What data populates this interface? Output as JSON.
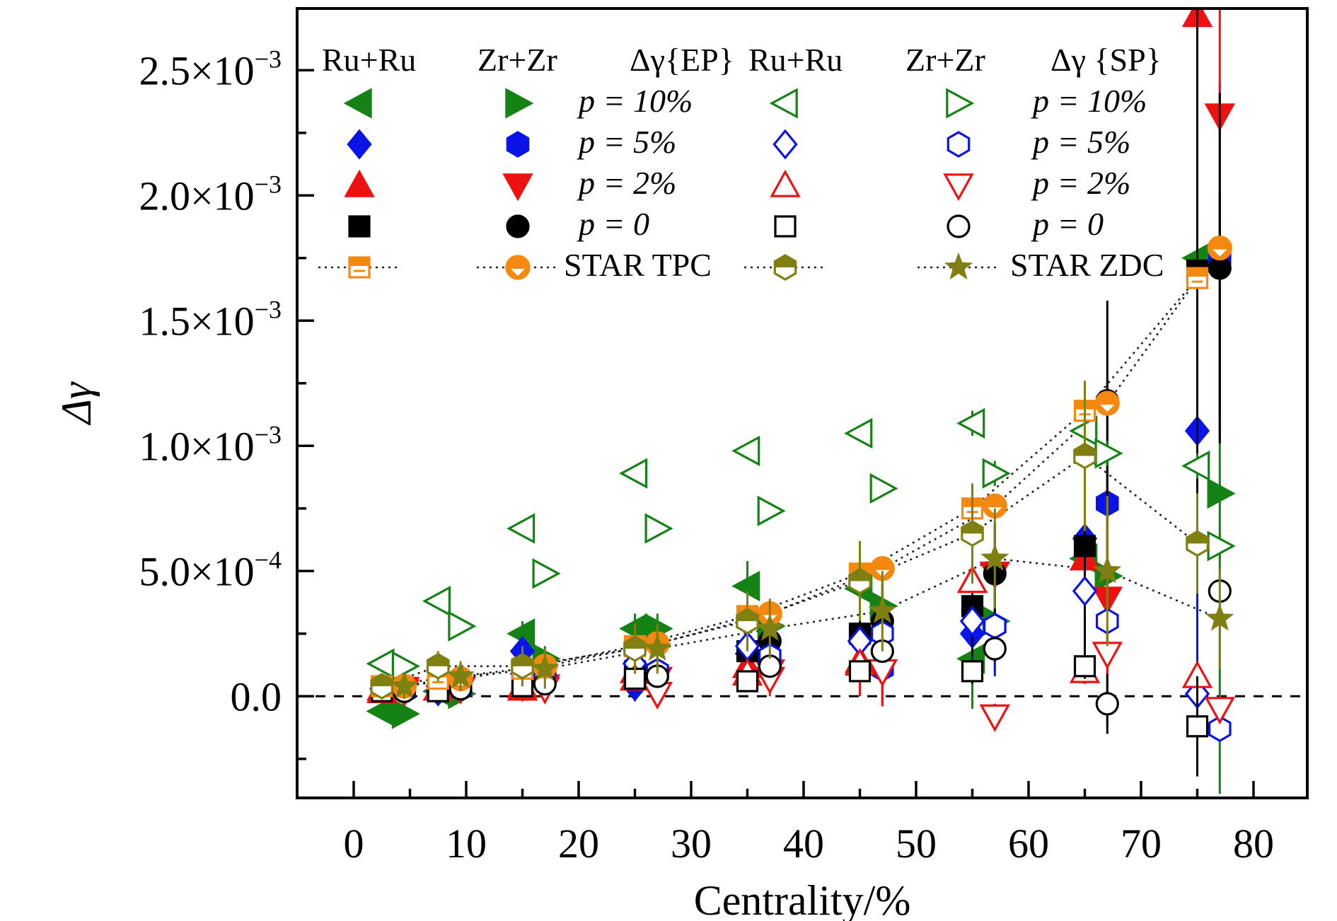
{
  "chart_data": {
    "type": "scatter",
    "xlabel": "Centrality/%",
    "ylabel": "Δγ",
    "xlim": [
      -5,
      85
    ],
    "ylim": [
      -0.0004,
      0.00275
    ],
    "x_ticks": [
      0,
      10,
      20,
      30,
      40,
      50,
      60,
      70,
      80
    ],
    "x_tick_labels": [
      "0",
      "10",
      "20",
      "30",
      "40",
      "50",
      "60",
      "70",
      "80"
    ],
    "y_ticks": [
      0,
      0.0005,
      0.001,
      0.0015,
      0.002,
      0.0025
    ],
    "y_tick_labels": [
      {
        "mantissa": "0.0",
        "exp": ""
      },
      {
        "mantissa": "5.0×10",
        "exp": "−4"
      },
      {
        "mantissa": "1.0×10",
        "exp": "−3"
      },
      {
        "mantissa": "1.5×10",
        "exp": "−3"
      },
      {
        "mantissa": "2.0×10",
        "exp": "−3"
      },
      {
        "mantissa": "2.5×10",
        "exp": "−3"
      }
    ],
    "zero_line": true,
    "legend": {
      "placement": "top",
      "headers": [
        "Ru+Ru",
        "Zr+Zr",
        "Δγ{EP}",
        "Ru+Ru",
        "Zr+Zr",
        "Δγ {SP}"
      ],
      "labels": [
        "p = 10%",
        "p = 5%",
        "p = 2%",
        "p = 0",
        "STAR TPC",
        "STAR ZDC"
      ]
    },
    "series": [
      {
        "key": "ep_ru_10",
        "marker": "tri-left",
        "fill": "full",
        "color": "#148214",
        "x": [
          2.5,
          7.5,
          15,
          25,
          35,
          45,
          55,
          65,
          75
        ],
        "y": [
          -6e-05,
          2e-05,
          0.00025,
          0.00027,
          0.00044,
          0.00043,
          0.00015,
          0.00055,
          0.00175
        ],
        "err": [
          3e-05,
          3e-05,
          5e-05,
          6e-05,
          0.0001,
          0.00014,
          0.0002,
          0.0005,
          0.0012
        ]
      },
      {
        "key": "ep_zr_10",
        "marker": "tri-right",
        "fill": "full",
        "color": "#148214",
        "x": [
          4.5,
          9.5,
          17,
          27,
          37,
          47,
          57,
          67,
          77
        ],
        "y": [
          -7e-05,
          1e-05,
          0.00015,
          0.00027,
          0.00028,
          0.00036,
          0.0003,
          0.00048,
          0.00081
        ],
        "err": [
          3e-05,
          3e-05,
          5e-05,
          6e-05,
          0.0001,
          0.00014,
          0.0002,
          0.0005,
          0.0012
        ]
      },
      {
        "key": "ep_ru_5",
        "marker": "diamond",
        "fill": "full",
        "color": "#0a14e6",
        "x": [
          2.5,
          7.5,
          15,
          25,
          35,
          45,
          55,
          65,
          75
        ],
        "y": [
          3e-05,
          2e-05,
          0.00018,
          4e-05,
          0.00017,
          0.00022,
          0.00025,
          0.00063,
          0.00106
        ],
        "err": [
          3e-05,
          3e-05,
          5e-05,
          6e-05,
          0.0001,
          0.00014,
          0.0002,
          0.0005,
          0.0012
        ]
      },
      {
        "key": "ep_zr_5",
        "marker": "hexagon",
        "fill": "full",
        "color": "#0a14e6",
        "x": [
          4.5,
          9.5,
          17,
          27,
          37,
          47,
          57,
          67,
          77
        ],
        "y": [
          2e-05,
          3e-05,
          7e-05,
          9e-05,
          0.00016,
          0.00011,
          0.00028,
          0.00077,
          0.00175
        ],
        "err": [
          3e-05,
          3e-05,
          5e-05,
          6e-05,
          0.0001,
          0.00014,
          0.0002,
          0.0005,
          0.0007
        ]
      },
      {
        "key": "ep_ru_2",
        "marker": "tri-up",
        "fill": "full",
        "color": "#ee1111",
        "x": [
          2.5,
          7.5,
          15,
          25,
          35,
          45,
          55,
          65,
          75
        ],
        "y": [
          3e-05,
          3e-05,
          3e-05,
          0.0001,
          0.00012,
          0.00014,
          0.00046,
          0.00055,
          0.00272
        ],
        "err": [
          3e-05,
          3e-05,
          5e-05,
          6e-05,
          0.0001,
          0.00014,
          0.0002,
          0.0005,
          0.0012
        ]
      },
      {
        "key": "ep_zr_2",
        "marker": "tri-down",
        "fill": "full",
        "color": "#ee1111",
        "x": [
          4.5,
          9.5,
          17,
          27,
          37,
          47,
          57,
          67,
          77
        ],
        "y": [
          3e-05,
          3e-05,
          4e-05,
          7e-05,
          0.0001,
          0.0001,
          0.00049,
          0.00039,
          0.00232
        ],
        "err": [
          3e-05,
          3e-05,
          5e-05,
          6e-05,
          0.0001,
          0.00014,
          0.0002,
          0.0005,
          0.0012
        ]
      },
      {
        "key": "ep_ru_0",
        "marker": "square",
        "fill": "full",
        "color": "#000000",
        "x": [
          2.5,
          7.5,
          15,
          25,
          35,
          45,
          55,
          65,
          75
        ],
        "y": [
          3e-05,
          3e-05,
          6e-05,
          0.0001,
          0.00018,
          0.00025,
          0.00036,
          0.0006,
          0.0017
        ],
        "err": [
          3e-05,
          3e-05,
          5e-05,
          6e-05,
          0.0001,
          0.00014,
          0.0002,
          0.0005,
          0.0012
        ]
      },
      {
        "key": "ep_zr_0",
        "marker": "circle",
        "fill": "full",
        "color": "#000000",
        "x": [
          4.5,
          9.5,
          17,
          27,
          37,
          47,
          57,
          67,
          77
        ],
        "y": [
          2e-05,
          4e-05,
          7e-05,
          0.0001,
          0.00022,
          0.0003,
          0.00049,
          0.00118,
          0.00171
        ],
        "err": [
          3e-05,
          3e-05,
          5e-05,
          6e-05,
          0.0001,
          0.00014,
          0.0002,
          0.0004,
          0.0007
        ]
      },
      {
        "key": "sp_ru_10",
        "marker": "tri-left",
        "fill": "open",
        "color": "#148214",
        "x": [
          2.5,
          7.5,
          15,
          25,
          35,
          45,
          55,
          65,
          75
        ],
        "y": [
          0.00013,
          0.00038,
          0.00067,
          0.00089,
          0.00098,
          0.00105,
          0.00109,
          0.00106,
          0.00092
        ],
        "err": [
          3e-05,
          3e-05,
          3e-05,
          3e-05,
          3e-05,
          3e-05,
          5e-05,
          5e-05,
          5e-05
        ]
      },
      {
        "key": "sp_zr_10",
        "marker": "tri-right",
        "fill": "open",
        "color": "#148214",
        "x": [
          4.5,
          9.5,
          17,
          27,
          37,
          47,
          57,
          67,
          77
        ],
        "y": [
          0.00012,
          0.00028,
          0.00049,
          0.00067,
          0.00074,
          0.00083,
          0.00089,
          0.00097,
          0.0006
        ],
        "err": [
          3e-05,
          3e-05,
          3e-05,
          3e-05,
          3e-05,
          3e-05,
          5e-05,
          5e-05,
          5e-05
        ]
      },
      {
        "key": "sp_ru_5",
        "marker": "diamond",
        "fill": "open",
        "color": "#0a14e6",
        "x": [
          2.5,
          7.5,
          15,
          25,
          35,
          45,
          55,
          65,
          75
        ],
        "y": [
          3e-05,
          4e-05,
          9e-05,
          0.00013,
          0.0002,
          0.00022,
          0.0003,
          0.00042,
          1e-05
        ],
        "err": [
          3e-05,
          3e-05,
          3e-05,
          3e-05,
          3e-05,
          3e-05,
          5e-05,
          5e-05,
          5e-05
        ]
      },
      {
        "key": "sp_zr_5",
        "marker": "hexagon",
        "fill": "open",
        "color": "#0a14e6",
        "x": [
          4.5,
          9.5,
          17,
          27,
          37,
          47,
          57,
          67,
          77
        ],
        "y": [
          2e-05,
          4e-05,
          7e-05,
          0.0001,
          0.00016,
          0.00025,
          0.00028,
          0.0003,
          -0.00013
        ],
        "err": [
          3e-05,
          3e-05,
          3e-05,
          3e-05,
          3e-05,
          3e-05,
          5e-05,
          5e-05,
          5e-05
        ]
      },
      {
        "key": "sp_ru_2",
        "marker": "tri-up",
        "fill": "open",
        "color": "#ee1111",
        "x": [
          2.5,
          7.5,
          15,
          25,
          35,
          45,
          55,
          65,
          75
        ],
        "y": [
          2e-05,
          3e-05,
          4e-05,
          7e-05,
          9e-05,
          0.00013,
          0.00046,
          0.0001,
          8e-05
        ],
        "err": [
          3e-05,
          3e-05,
          3e-05,
          3e-05,
          3e-05,
          3e-05,
          5e-05,
          5e-05,
          5e-05
        ]
      },
      {
        "key": "sp_zr_2",
        "marker": "tri-down",
        "fill": "open",
        "color": "#ee1111",
        "x": [
          4.5,
          9.5,
          17,
          27,
          37,
          47,
          57,
          67,
          77
        ],
        "y": [
          2e-05,
          3e-05,
          3e-05,
          1e-05,
          7e-05,
          0.0001,
          -8e-05,
          0.00017,
          -5e-05
        ],
        "err": [
          3e-05,
          3e-05,
          3e-05,
          3e-05,
          3e-05,
          3e-05,
          5e-05,
          5e-05,
          5e-05
        ]
      },
      {
        "key": "sp_ru_0",
        "marker": "square",
        "fill": "open",
        "color": "#000000",
        "x": [
          2.5,
          7.5,
          15,
          25,
          35,
          45,
          55,
          65,
          75
        ],
        "y": [
          2e-05,
          2e-05,
          4e-05,
          7e-05,
          6e-05,
          0.0001,
          0.0001,
          0.00012,
          -0.00012
        ],
        "err": [
          3e-05,
          3e-05,
          3e-05,
          3e-05,
          3e-05,
          3e-05,
          5e-05,
          5e-05,
          0.0002
        ]
      },
      {
        "key": "sp_zr_0",
        "marker": "circle",
        "fill": "open",
        "color": "#000000",
        "x": [
          4.5,
          9.5,
          17,
          27,
          37,
          47,
          57,
          67,
          77
        ],
        "y": [
          2e-05,
          3e-05,
          5e-05,
          8e-05,
          0.00012,
          0.00018,
          0.00019,
          -3e-05,
          0.00042
        ],
        "err": [
          3e-05,
          3e-05,
          3e-05,
          3e-05,
          3e-05,
          3e-05,
          5e-05,
          0.00012,
          5e-05
        ]
      },
      {
        "key": "star_tpc_ru",
        "marker": "square-bar",
        "fill": "half",
        "color": "#f5880f",
        "line": "dotted",
        "x": [
          2.5,
          7.5,
          15,
          25,
          35,
          45,
          55,
          65,
          75
        ],
        "y": [
          4e-05,
          7e-05,
          0.00011,
          0.0002,
          0.00032,
          0.00049,
          0.00075,
          0.00114,
          0.00167
        ],
        "err": [
          0,
          0,
          0,
          0,
          0,
          0,
          0,
          0,
          0
        ]
      },
      {
        "key": "star_tpc_zr",
        "marker": "circle-half",
        "fill": "half",
        "color": "#f5880f",
        "line": "dotted",
        "x": [
          4.5,
          9.5,
          17,
          27,
          37,
          47,
          57,
          67,
          77
        ],
        "y": [
          4e-05,
          7e-05,
          0.00012,
          0.00021,
          0.00033,
          0.00051,
          0.00076,
          0.00117,
          0.00179
        ],
        "err": [
          0,
          0,
          0,
          0,
          0,
          0,
          0,
          0,
          0
        ]
      },
      {
        "key": "star_zdc_ru",
        "marker": "hexagon-half",
        "fill": "half",
        "color": "#7f7f12",
        "line": "dotted",
        "x": [
          2.5,
          7.5,
          15,
          25,
          35,
          45,
          55,
          65,
          75
        ],
        "y": [
          4e-05,
          0.00012,
          0.00012,
          0.00019,
          0.0003,
          0.00046,
          0.00065,
          0.00096,
          0.00061
        ],
        "err": [
          5e-05,
          6e-05,
          8e-05,
          0.0001,
          0.00012,
          0.00016,
          0.0002,
          0.0003,
          0.0002
        ]
      },
      {
        "key": "star_zdc_zr",
        "marker": "star",
        "fill": "full",
        "color": "#7f7f12",
        "line": "dotted",
        "x": [
          4.5,
          9.5,
          17,
          27,
          37,
          47,
          57,
          67,
          77
        ],
        "y": [
          4e-05,
          8e-05,
          0.00011,
          0.00019,
          0.00027,
          0.00034,
          0.00055,
          0.0005,
          0.00031
        ],
        "err": [
          5e-05,
          6e-05,
          8e-05,
          0.0001,
          0.00012,
          0.00016,
          0.0002,
          0.0003,
          0.0002
        ]
      }
    ]
  }
}
